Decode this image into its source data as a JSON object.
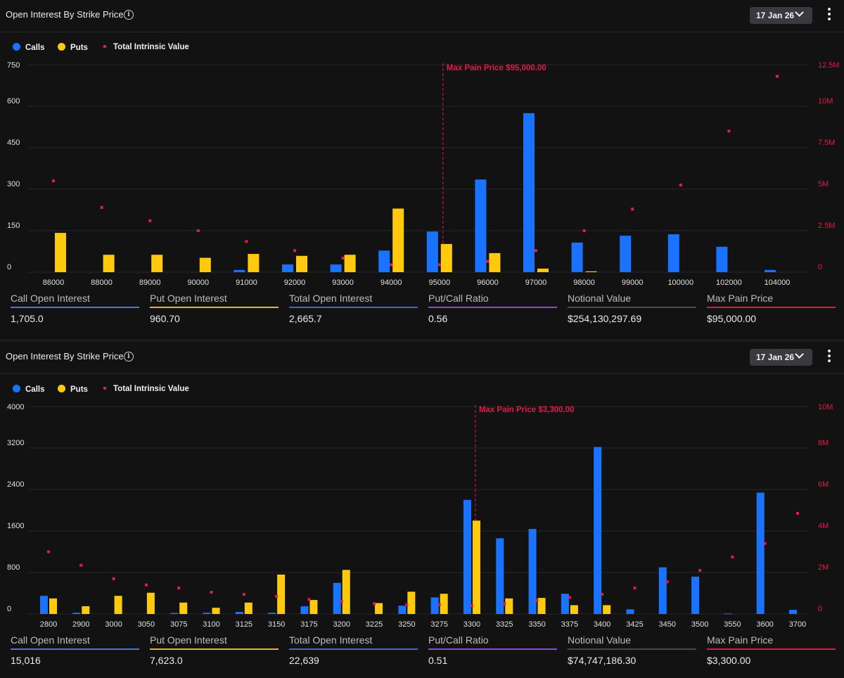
{
  "colors": {
    "calls": "#1a73ff",
    "puts": "#ffc90e",
    "intrinsic": "#e6194b",
    "grid": "#262629",
    "line_call": "#3d7bd9",
    "line_put": "#e9b71b",
    "line_total": "#2f6fd1",
    "line_ratio": "#7d4fe0",
    "line_notional": "#4a4a4d",
    "line_maxpain": "#e0174a"
  },
  "legend": {
    "calls": "Calls",
    "puts": "Puts",
    "intrinsic": "Total Intrinsic Value"
  },
  "panels": [
    {
      "title": "Open Interest By Strike Price",
      "date": "17 Jan 26",
      "stats": [
        {
          "label": "Call Open Interest",
          "value": "1,705.0"
        },
        {
          "label": "Put Open Interest",
          "value": "960.70"
        },
        {
          "label": "Total Open Interest",
          "value": "2,665.7"
        },
        {
          "label": "Put/Call Ratio",
          "value": "0.56"
        },
        {
          "label": "Notional Value",
          "value": "$254,130,297.69"
        },
        {
          "label": "Max Pain Price",
          "value": "$95,000.00"
        }
      ]
    },
    {
      "title": "Open Interest By Strike Price",
      "date": "17 Jan 26",
      "stats": [
        {
          "label": "Call Open Interest",
          "value": "15,016"
        },
        {
          "label": "Put Open Interest",
          "value": "7,623.0"
        },
        {
          "label": "Total Open Interest",
          "value": "22,639"
        },
        {
          "label": "Put/Call Ratio",
          "value": "0.51"
        },
        {
          "label": "Notional Value",
          "value": "$74,747,186.30"
        },
        {
          "label": "Max Pain Price",
          "value": "$3,300.00"
        }
      ]
    }
  ],
  "chart_data": [
    {
      "type": "bar",
      "categories": [
        "86000",
        "88000",
        "89000",
        "90000",
        "91000",
        "92000",
        "93000",
        "94000",
        "95000",
        "96000",
        "97000",
        "98000",
        "99000",
        "100000",
        "102000",
        "104000"
      ],
      "series": [
        {
          "name": "Calls",
          "values": [
            0,
            0,
            0,
            0,
            8,
            28,
            28,
            78,
            147,
            335,
            575,
            107,
            132,
            137,
            92,
            8
          ]
        },
        {
          "name": "Puts",
          "values": [
            142,
            63,
            63,
            52,
            66,
            59,
            63,
            230,
            102,
            69,
            13,
            3,
            0,
            0,
            0,
            0
          ]
        },
        {
          "name": "Total Intrinsic Value",
          "axis": "right",
          "values": [
            5500000,
            3900000,
            3100000,
            2500000,
            1850000,
            1300000,
            850000,
            450000,
            450000,
            650000,
            1300000,
            2500000,
            3800000,
            5250000,
            8500000,
            11800000
          ]
        }
      ],
      "ylim": [
        0,
        750
      ],
      "yticks": [
        "0",
        "150",
        "300",
        "450",
        "600",
        "750"
      ],
      "y2lim": [
        0,
        12500000
      ],
      "y2ticks": [
        "0",
        "2.5M",
        "5M",
        "7.5M",
        "10M",
        "12.5M"
      ],
      "max_pain": {
        "category": "95000",
        "label": "Max Pain Price $95,000.00"
      },
      "grid": true,
      "legend": "top-left"
    },
    {
      "type": "bar",
      "categories": [
        "2800",
        "2900",
        "3000",
        "3050",
        "3075",
        "3100",
        "3125",
        "3150",
        "3175",
        "3200",
        "3225",
        "3250",
        "3275",
        "3300",
        "3325",
        "3350",
        "3375",
        "3400",
        "3425",
        "3450",
        "3500",
        "3550",
        "3600",
        "3700"
      ],
      "series": [
        {
          "name": "Calls",
          "values": [
            350,
            25,
            0,
            0,
            20,
            25,
            40,
            25,
            150,
            600,
            0,
            160,
            320,
            2200,
            1460,
            1640,
            390,
            3220,
            90,
            900,
            720,
            10,
            2340,
            80
          ]
        },
        {
          "name": "Puts",
          "values": [
            300,
            150,
            350,
            410,
            220,
            120,
            220,
            760,
            270,
            850,
            210,
            430,
            390,
            1800,
            300,
            310,
            170,
            170,
            0,
            0,
            0,
            0,
            0,
            0
          ]
        },
        {
          "name": "Total Intrinsic Value",
          "axis": "right",
          "values": [
            3000000,
            2350000,
            1700000,
            1400000,
            1250000,
            1050000,
            950000,
            850000,
            700000,
            600000,
            500000,
            450000,
            450000,
            400000,
            500000,
            650000,
            800000,
            950000,
            1250000,
            1550000,
            2100000,
            2750000,
            3400000,
            4850000
          ]
        }
      ],
      "ylim": [
        0,
        4000
      ],
      "yticks": [
        "0",
        "800",
        "1600",
        "2400",
        "3200",
        "4000"
      ],
      "y2lim": [
        0,
        10000000
      ],
      "y2ticks": [
        "0",
        "2M",
        "4M",
        "6M",
        "8M",
        "10M"
      ],
      "max_pain": {
        "category": "3300",
        "label": "Max Pain Price $3,300.00"
      },
      "grid": true,
      "legend": "top-left"
    }
  ]
}
